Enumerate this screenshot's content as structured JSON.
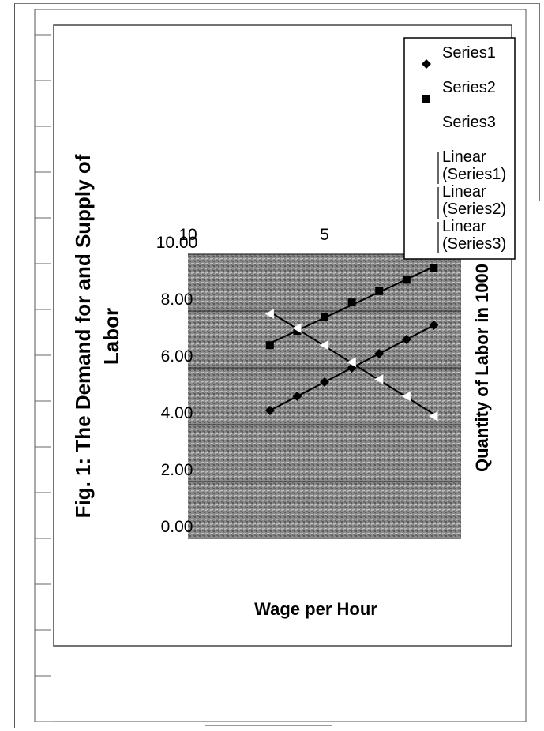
{
  "chart_data": {
    "type": "scatter",
    "title": "Fig. 1: The Demand for and Supply of Labor",
    "xlabel": "Quantity of Labor in 1000",
    "ylabel": "Wage per Hour",
    "xlim": [
      0,
      10
    ],
    "ylim": [
      0,
      10
    ],
    "x_ticks": [
      "0",
      "5",
      "10"
    ],
    "y_ticks": [
      "0.00",
      "2.00",
      "4.00",
      "6.00",
      "8.00",
      "10.00"
    ],
    "grid": true,
    "legend_position": "right",
    "series": [
      {
        "name": "Series1",
        "marker": "diamond",
        "color": "#000000",
        "x": [
          1,
          2,
          3,
          4,
          5,
          6,
          7
        ],
        "y": [
          7.5,
          7.0,
          6.5,
          6.0,
          5.5,
          5.0,
          4.5
        ]
      },
      {
        "name": "Series2",
        "marker": "square",
        "color": "#000000",
        "x": [
          1,
          2,
          3,
          4,
          5,
          6,
          7
        ],
        "y": [
          9.5,
          9.1,
          8.7,
          8.3,
          7.8,
          7.3,
          6.8
        ]
      },
      {
        "name": "Series3",
        "marker": "triangle",
        "color": "#ffffff",
        "x": [
          1,
          2,
          3,
          4,
          5,
          6,
          7
        ],
        "y": [
          4.3,
          5.0,
          5.6,
          6.2,
          6.8,
          7.4,
          7.9
        ]
      }
    ],
    "trendlines": [
      {
        "name": "Linear\n(Series1)"
      },
      {
        "name": "Linear\n(Series2)"
      },
      {
        "name": "Linear\n(Series3)"
      }
    ],
    "legend": [
      "Series1",
      "Series2",
      "Series3",
      "Linear (Series1)",
      "Linear (Series2)",
      "Linear (Series3)"
    ]
  },
  "colors": {
    "plot_area": "#8a8a8a",
    "gridline": "#000000",
    "line": "#000000"
  }
}
